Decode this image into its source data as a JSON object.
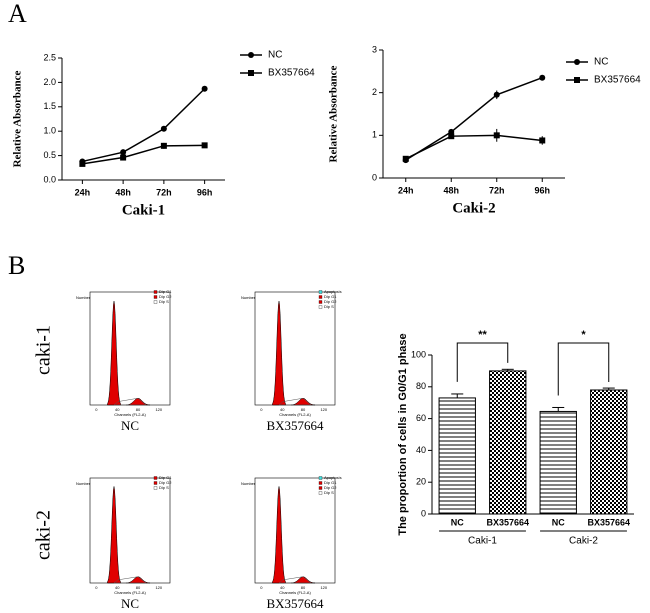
{
  "panel_labels": {
    "a": "A",
    "b": "B"
  },
  "chart_data": [
    {
      "type": "line",
      "title": "Caki-1",
      "y_label": "Relative Absorbance",
      "categories": [
        "24h",
        "48h",
        "72h",
        "96h"
      ],
      "series": [
        {
          "name": "NC",
          "color": "#000000",
          "marker": "circle",
          "values": [
            0.38,
            0.57,
            1.05,
            1.87
          ],
          "errors": [
            0.02,
            0.02,
            0.03,
            0.02
          ]
        },
        {
          "name": "BX357664",
          "color": "#000000",
          "marker": "square",
          "values": [
            0.33,
            0.46,
            0.7,
            0.71
          ],
          "errors": [
            0.02,
            0.02,
            0.06,
            0.02
          ]
        }
      ],
      "ylim": [
        0,
        2.5
      ],
      "yticks": [
        {
          "value": 0,
          "label": "0.0"
        },
        0.5,
        {
          "value": 1,
          "label": "1.0"
        },
        1.5,
        {
          "value": 2,
          "label": "2.0"
        },
        2.5
      ]
    },
    {
      "type": "line",
      "title": "Caki-2",
      "y_label": "Relative Absorbance",
      "categories": [
        "24h",
        "48h",
        "72h",
        "96h"
      ],
      "series": [
        {
          "name": "NC",
          "color": "#000000",
          "marker": "circle",
          "values": [
            0.42,
            1.08,
            1.95,
            2.35
          ],
          "errors": [
            0.03,
            0.05,
            0.1,
            0.03
          ]
        },
        {
          "name": "BX357664",
          "color": "#000000",
          "marker": "square",
          "values": [
            0.45,
            0.98,
            1.0,
            0.88
          ],
          "errors": [
            0.03,
            0.05,
            0.15,
            0.1
          ]
        }
      ],
      "ylim": [
        0,
        3
      ],
      "yticks": [
        0,
        1,
        2,
        3
      ]
    },
    {
      "type": "bar",
      "y_label": "The proportion of cells in G0/G1 phase",
      "categories": [
        "NC",
        "BX357664",
        "NC",
        "BX357664"
      ],
      "patterns": [
        "stripes",
        "checker",
        "stripes",
        "checker"
      ],
      "groups": [
        "Caki-1",
        "Caki-2"
      ],
      "values": [
        73,
        90,
        64.5,
        78
      ],
      "errors": [
        2.5,
        1,
        2.5,
        1.2
      ],
      "annotations": [
        {
          "text": "**",
          "between": [
            0,
            1
          ]
        },
        {
          "text": "*",
          "between": [
            2,
            3
          ]
        }
      ],
      "ylim": [
        0,
        100
      ],
      "yticks": [
        0,
        20,
        40,
        60,
        80,
        100
      ]
    }
  ],
  "flow": {
    "row_labels": [
      "caki-1",
      "caki-2"
    ],
    "x_label": "Channels (FL2-A)",
    "y_label": "Number",
    "xticks": [
      0,
      40,
      80,
      120
    ],
    "panels": [
      {
        "label": "NC",
        "legend": [
          {
            "name": "Dip G1",
            "color": "#e00000"
          },
          {
            "name": "Dip G2",
            "color": "#e00000"
          },
          {
            "name": "Dip S",
            "color": "#ffffff"
          }
        ]
      },
      {
        "label": "BX357664",
        "legend": [
          {
            "name": "Apoptosis",
            "color": "#40e0e0"
          },
          {
            "name": "Dip G1",
            "color": "#e00000"
          },
          {
            "name": "Dip G2",
            "color": "#e00000"
          },
          {
            "name": "Dip S",
            "color": "#ffffff"
          }
        ]
      },
      {
        "label": "NC",
        "legend": [
          {
            "name": "Dip G1",
            "color": "#e00000"
          },
          {
            "name": "Dip G2",
            "color": "#e00000"
          },
          {
            "name": "Dip S",
            "color": "#ffffff"
          }
        ]
      },
      {
        "label": "BX357664",
        "legend": [
          {
            "name": "Apoptosis",
            "color": "#40e0e0"
          },
          {
            "name": "Dip G1",
            "color": "#e00000"
          },
          {
            "name": "Dip G2",
            "color": "#e00000"
          },
          {
            "name": "Dip S",
            "color": "#ffffff"
          }
        ]
      }
    ]
  }
}
